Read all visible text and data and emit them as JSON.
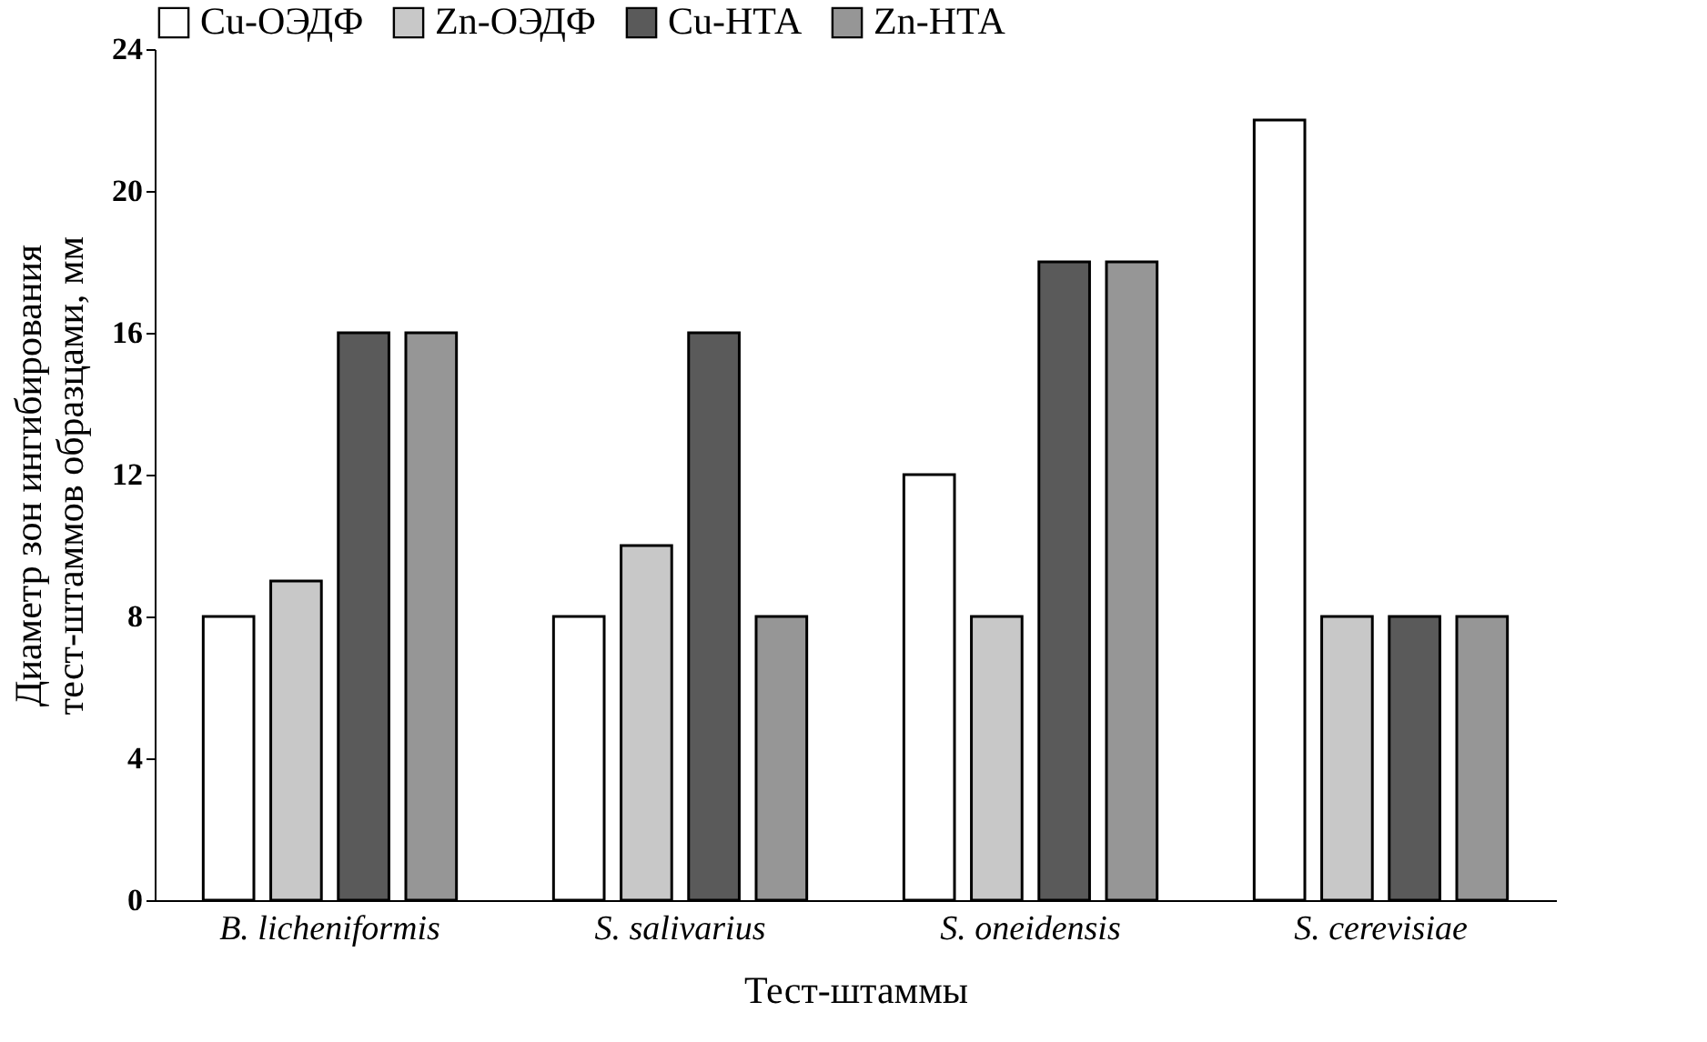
{
  "chart_data": {
    "type": "bar",
    "xlabel": "Тест-штаммы",
    "ylabel": "Диаметр зон ингибирования\nтест-штаммов образцами, мм",
    "categories": [
      "B. licheniformis",
      "S. salivarius",
      "S. oneidensis",
      "S. cerevisiae"
    ],
    "series": [
      {
        "name": "Cu-ОЭДФ",
        "color": "#ffffff",
        "values": [
          8,
          8,
          12,
          22
        ]
      },
      {
        "name": "Zn-ОЭДФ",
        "color": "#c8c8c8",
        "values": [
          9,
          10,
          8,
          8
        ]
      },
      {
        "name": "Cu-НТА",
        "color": "#5a5a5a",
        "values": [
          16,
          16,
          18,
          8
        ]
      },
      {
        "name": "Zn-НТА",
        "color": "#969696",
        "values": [
          16,
          8,
          18,
          8
        ]
      }
    ],
    "ylim": [
      0,
      24
    ],
    "yticks": [
      0,
      4,
      8,
      12,
      16,
      20,
      24
    ],
    "grid": false,
    "legend": "top"
  }
}
